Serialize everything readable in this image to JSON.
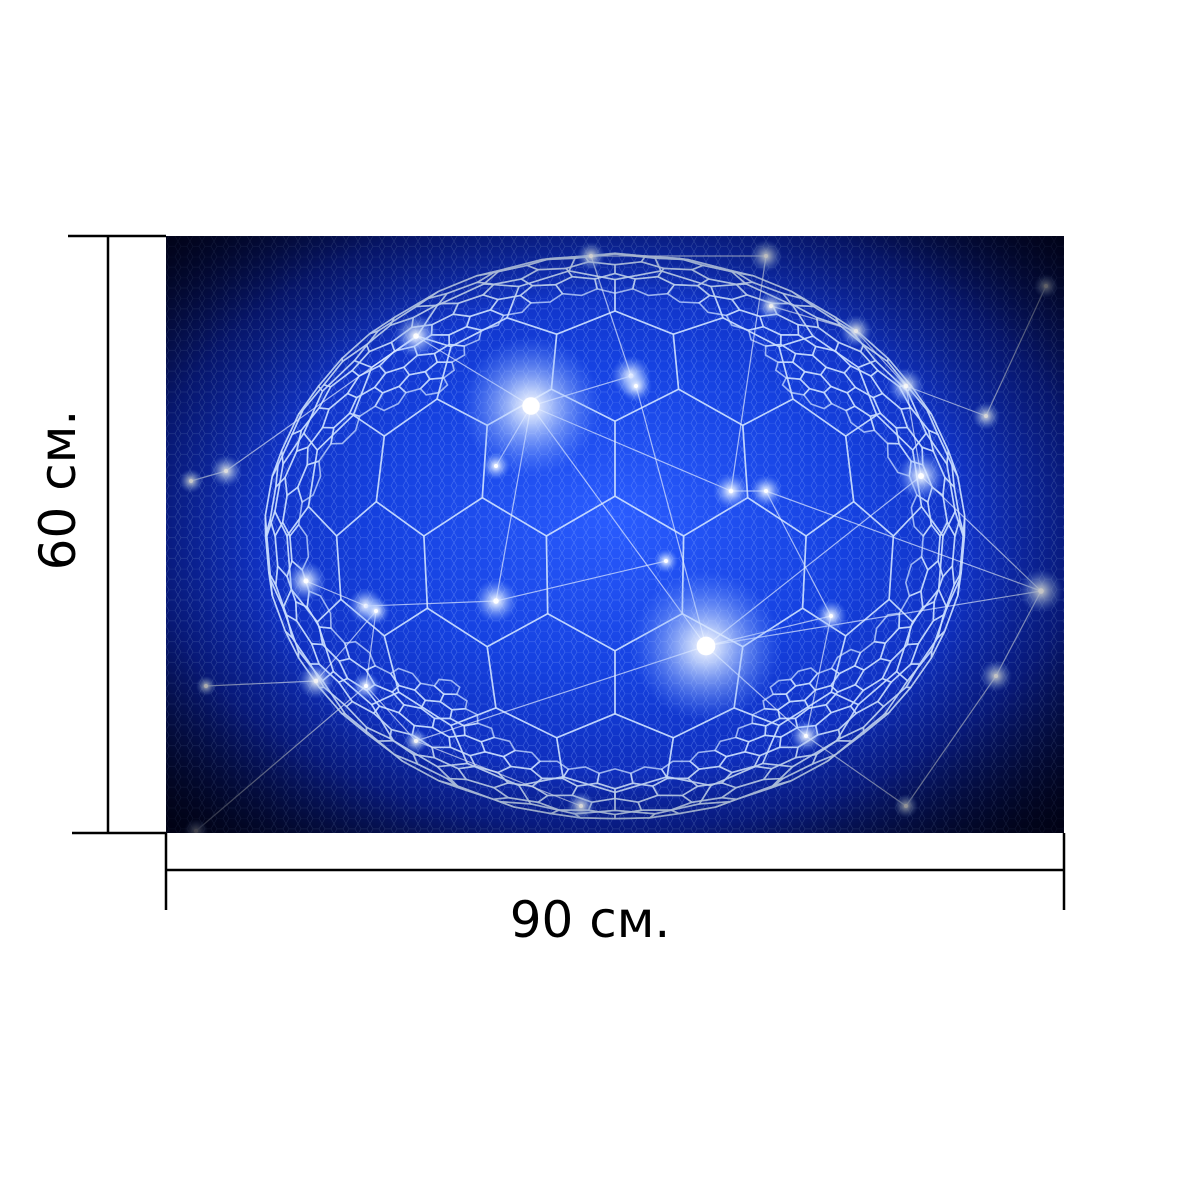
{
  "product_preview": {
    "image": {
      "subject": "blue-hexagonal-network-sphere",
      "colors": {
        "deep_blue": "#0b1f9e",
        "bright_blue": "#1a49e8",
        "dark_edge": "#010314",
        "grid_line": "#c9ddff",
        "glow": "#ffffff"
      }
    },
    "dimensions": {
      "width_label": "90 см.",
      "height_label": "60 см."
    }
  }
}
